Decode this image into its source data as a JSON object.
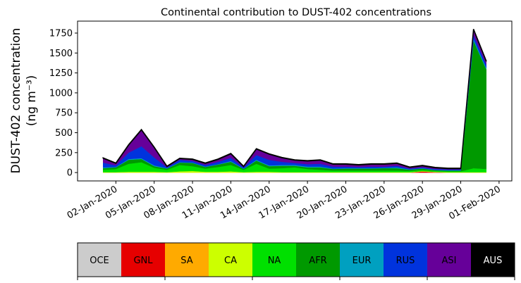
{
  "chart_data": {
    "type": "stacked_area",
    "title": "Continental contribution to DUST-402 concentrations",
    "ylabel": [
      "DUST-402 concentration",
      "(ng m⁻³)"
    ],
    "x": [
      "2020-01-01",
      "2020-01-02",
      "2020-01-03",
      "2020-01-04",
      "2020-01-05",
      "2020-01-06",
      "2020-01-07",
      "2020-01-08",
      "2020-01-09",
      "2020-01-10",
      "2020-01-11",
      "2020-01-12",
      "2020-01-13",
      "2020-01-14",
      "2020-01-15",
      "2020-01-16",
      "2020-01-17",
      "2020-01-18",
      "2020-01-19",
      "2020-01-20",
      "2020-01-21",
      "2020-01-22",
      "2020-01-23",
      "2020-01-24",
      "2020-01-25",
      "2020-01-26",
      "2020-01-27",
      "2020-01-28",
      "2020-01-29",
      "2020-01-30",
      "2020-01-31"
    ],
    "xlim": [
      "2019-12-30",
      "2020-02-02"
    ],
    "xticks": [
      {
        "value": "2020-01-02",
        "label": "02-Jan-2020"
      },
      {
        "value": "2020-01-05",
        "label": "05-Jan-2020"
      },
      {
        "value": "2020-01-08",
        "label": "08-Jan-2020"
      },
      {
        "value": "2020-01-11",
        "label": "11-Jan-2020"
      },
      {
        "value": "2020-01-14",
        "label": "14-Jan-2020"
      },
      {
        "value": "2020-01-17",
        "label": "17-Jan-2020"
      },
      {
        "value": "2020-01-20",
        "label": "20-Jan-2020"
      },
      {
        "value": "2020-01-23",
        "label": "23-Jan-2020"
      },
      {
        "value": "2020-01-26",
        "label": "26-Jan-2020"
      },
      {
        "value": "2020-01-29",
        "label": "29-Jan-2020"
      },
      {
        "value": "2020-02-01",
        "label": "01-Feb-2020"
      }
    ],
    "ylim": [
      -105,
      1900
    ],
    "yticks": [
      0,
      250,
      500,
      750,
      1000,
      1250,
      1500,
      1750
    ],
    "series": [
      {
        "name": "OCE",
        "color": "#cccccc",
        "values": [
          0,
          0,
          0,
          0,
          0,
          0,
          0,
          0,
          0,
          0,
          0,
          0,
          0,
          0,
          0,
          0,
          0,
          0,
          0,
          0,
          0,
          0,
          0,
          0,
          0,
          0,
          0,
          0,
          0,
          0,
          0
        ]
      },
      {
        "name": "GNL",
        "color": "#e60000",
        "values": [
          0,
          0,
          0,
          0,
          0,
          0,
          0,
          0,
          0,
          0,
          0,
          0,
          0,
          0,
          0,
          0,
          0,
          0,
          0,
          0,
          0,
          0,
          0,
          0,
          0,
          15,
          5,
          0,
          0,
          0,
          0
        ]
      },
      {
        "name": "SA",
        "color": "#ffaa00",
        "values": [
          0,
          0,
          0,
          0,
          0,
          0,
          0,
          0,
          0,
          0,
          0,
          0,
          0,
          0,
          0,
          0,
          0,
          0,
          0,
          0,
          0,
          0,
          0,
          0,
          0,
          0,
          0,
          0,
          0,
          0,
          0
        ]
      },
      {
        "name": "CA",
        "color": "#ccff00",
        "values": [
          5,
          5,
          10,
          10,
          10,
          5,
          15,
          20,
          10,
          10,
          15,
          5,
          10,
          10,
          5,
          5,
          5,
          5,
          5,
          5,
          5,
          5,
          5,
          5,
          5,
          5,
          5,
          5,
          5,
          5,
          5
        ]
      },
      {
        "name": "NA",
        "color": "#00e000",
        "values": [
          30,
          40,
          100,
          120,
          50,
          30,
          80,
          60,
          40,
          60,
          80,
          30,
          100,
          40,
          50,
          60,
          40,
          30,
          20,
          20,
          20,
          20,
          20,
          20,
          15,
          15,
          10,
          10,
          10,
          50,
          40
        ]
      },
      {
        "name": "AFR",
        "color": "#009900",
        "values": [
          20,
          20,
          50,
          40,
          20,
          15,
          30,
          40,
          20,
          30,
          40,
          10,
          40,
          30,
          30,
          20,
          20,
          30,
          20,
          25,
          25,
          25,
          30,
          30,
          15,
          15,
          10,
          10,
          10,
          1600,
          1250
        ]
      },
      {
        "name": "EUR",
        "color": "#00a0c0",
        "values": [
          10,
          5,
          10,
          10,
          10,
          5,
          5,
          5,
          5,
          5,
          10,
          5,
          10,
          10,
          10,
          10,
          10,
          10,
          5,
          5,
          5,
          5,
          5,
          10,
          5,
          5,
          5,
          5,
          5,
          20,
          20
        ]
      },
      {
        "name": "RUS",
        "color": "#0033dd",
        "values": [
          60,
          20,
          80,
          150,
          100,
          10,
          30,
          20,
          20,
          30,
          40,
          15,
          60,
          70,
          40,
          25,
          30,
          35,
          25,
          20,
          15,
          20,
          15,
          20,
          10,
          10,
          10,
          10,
          10,
          50,
          40
        ]
      },
      {
        "name": "ASI",
        "color": "#660099",
        "values": [
          55,
          25,
          95,
          205,
          125,
          10,
          15,
          20,
          20,
          30,
          50,
          10,
          75,
          70,
          50,
          35,
          40,
          45,
          30,
          30,
          25,
          30,
          30,
          30,
          15,
          20,
          15,
          10,
          10,
          70,
          40
        ]
      },
      {
        "name": "AUS",
        "color": "#000000",
        "values": [
          5,
          5,
          5,
          5,
          5,
          5,
          5,
          5,
          5,
          5,
          5,
          5,
          5,
          5,
          5,
          5,
          5,
          5,
          5,
          5,
          5,
          5,
          5,
          5,
          5,
          5,
          5,
          5,
          5,
          5,
          5
        ]
      }
    ]
  }
}
